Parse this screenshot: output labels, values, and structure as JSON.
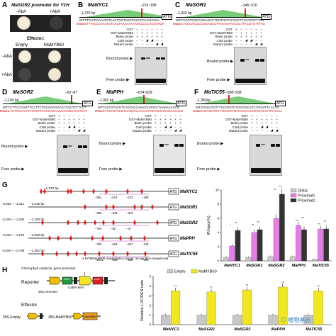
{
  "panelA": {
    "letter": "A",
    "title": "MaSGR2 promoter for Y1H",
    "aba_minus": "−AbA",
    "aba_plus": "+AbA",
    "aba_minus2": "−AbA",
    "aba_plus2": "+AbA",
    "effector": "Effector:",
    "empty": "Empty",
    "mamyb60": "MaMYB60"
  },
  "panelB": {
    "letter": "B",
    "gene": "MaNYC1",
    "pos": "−223~188",
    "bp": "−1,370 bp",
    "wt": "WT:TTTACCCAAATGTAACTGGTAGGTGCCCCACGTAGA",
    "mut": "Mutant:TTTACCCAAATGTAACTAAAAAAAATGCCCCACGTAGA"
  },
  "panelC": {
    "letter": "C",
    "gene": "MaSGR1",
    "pos": "−345~310",
    "bp": "−1,032 bp",
    "wt": "WT:TCGGTCGCCGGAGCCTGGTGCTACCGCTTACGTGTTTAG",
    "mut": "Mutant:TCGGTCGCCGGAGCCTAAAAAAAACGCTTACGTGTTTAG"
  },
  "panelD": {
    "letter": "D",
    "gene": "MaSGR2",
    "pos": "−82~47",
    "bp": "−1,150 bp",
    "wt": "WT:TCTTCCTAATTTCCTTCTGCAGAGGTGCTGCTCTTCCT",
    "mut": "Mutant:TCTTCCTAATTTCCTTCTGCAGAAAAAAAGCTCTTCCT"
  },
  "panelE": {
    "letter": "E",
    "gene": "MaPPH",
    "pos": "−674~639",
    "bp": "−1,002 bp",
    "wt": "WT:TACTGTACGTCAGTACCAAACGATACCTAAGAACACG",
    "mut": "Mutant:TACTGTACGTCAGTACAAAAAAACTACCTAAGAACACG"
  },
  "panelF": {
    "letter": "F",
    "gene": "MaTIC55",
    "pos": "−998~938",
    "bp": "−1,381bp",
    "wt": "WT:GTAGATGTTTCCGTATCTATGTGCGTCTATAATTCACCA",
    "mut": "Mutant:GTAGATGTTTCCGTATCTAAAAAAAATCTATAATTCACCA"
  },
  "emsa": {
    "rowsB": [
      "GST",
      "GST-MaMYB60",
      "Biotin probe",
      "Cold probe",
      "Mutant probe"
    ],
    "rowsE": [
      "GST",
      "GST-MaMYB60",
      "Biotin prube",
      "Cold prube",
      "Mutant probe"
    ],
    "bound": "Bound probe",
    "free": "Free probe",
    "free2": "Free probe",
    "atg": "ATG"
  },
  "panelG": {
    "letter": "G",
    "legend": "MYBRs(MYB transcription factor recognition sequence)",
    "map": [
      {
        "gene": "MaNYC1",
        "bp": "−1,370 bp",
        "lab1": "−551",
        "lab2": "−514",
        "lab3": "−223",
        "lab4": "−188"
      },
      {
        "gene": "MaSGR1",
        "bp": "−1,032 bp",
        "left": "−2,263 ~ −2,114",
        "lab1": "−659",
        "lab2": "−345",
        "lab3": "−310"
      },
      {
        "gene": "MaSGR2",
        "bp": "−1,150 bp",
        "left": "−2,329 ~ −2,260",
        "lab1": "−754",
        "lab2": "−82",
        "lab3": "−47"
      },
      {
        "gene": "MaPPH",
        "bp": "−1,002 bp",
        "left": "−2,316 ~ −2,278",
        "lab1": "−792",
        "lab2": "−634",
        "lab3": "−347",
        "lab4": "−140"
      },
      {
        "gene": "MaTIC55",
        "bp": "−1,381 bp",
        "left": "−2,816 ~ −2,788",
        "lab1": "−1041",
        "lab2": "−890",
        "lab3": "−998",
        "lab4": "−938"
      }
    ]
  },
  "panelH": {
    "letter": "H",
    "reporter": "Reporter",
    "effector": "Effector",
    "promoter_label": "Chlorophyll catabolic gene promoter",
    "p35s": "35S promoter",
    "camv": "CaMV-term",
    "ren": "REN",
    "luc": "LUC",
    "empty_label": "35S-Empty",
    "myb_label": "35S-MaMYB60",
    "myb_box": "MaMYB60",
    "watermark": "植物基因"
  },
  "chart_data": [
    {
      "type": "bar",
      "ylabel": "IP/Input(%)",
      "ylim": [
        0,
        10
      ],
      "yticks": [
        0,
        2,
        4,
        6,
        8,
        10
      ],
      "categories": [
        "MaNYC1",
        "MaSGR1",
        "MaSGR2",
        "MaPPH",
        "MaTIC55"
      ],
      "legend_position": "top-right",
      "series": [
        {
          "name": "Distal",
          "color": "#c8c8c8",
          "values": [
            0.5,
            0.5,
            0.6,
            0.6,
            0.2
          ]
        },
        {
          "name": "Proximal1",
          "color": "#e87be8",
          "values": [
            2.1,
            4.0,
            6.0,
            5.0,
            4.5
          ]
        },
        {
          "name": "Proximal2",
          "color": "#333333",
          "values": [
            4.3,
            4.4,
            9.4,
            4.4,
            4.5
          ]
        }
      ],
      "significance": [
        [
          "*",
          "**"
        ],
        [
          "**",
          "**"
        ],
        [
          "**",
          "**"
        ],
        [
          "**",
          "**"
        ],
        [
          "**",
          "**"
        ]
      ]
    },
    {
      "type": "bar",
      "ylabel": "Relative LUC/REN ratio",
      "ylim": [
        0,
        5
      ],
      "yticks": [
        0,
        1,
        2,
        3,
        4,
        5
      ],
      "categories": [
        "MaNYC1",
        "MaSGR1",
        "MaSGR2",
        "MaPPH",
        "MaTIC55"
      ],
      "legend_position": "top",
      "series": [
        {
          "name": "Empty",
          "color": "#c8c8c8",
          "values": [
            1,
            1,
            1,
            1,
            1
          ]
        },
        {
          "name": "MaMYB60",
          "color": "#f2e61c",
          "values": [
            3.5,
            3.4,
            3.6,
            3.9,
            3.5
          ]
        }
      ],
      "significance": [
        "**",
        "**",
        "**",
        "**",
        "**"
      ]
    }
  ]
}
